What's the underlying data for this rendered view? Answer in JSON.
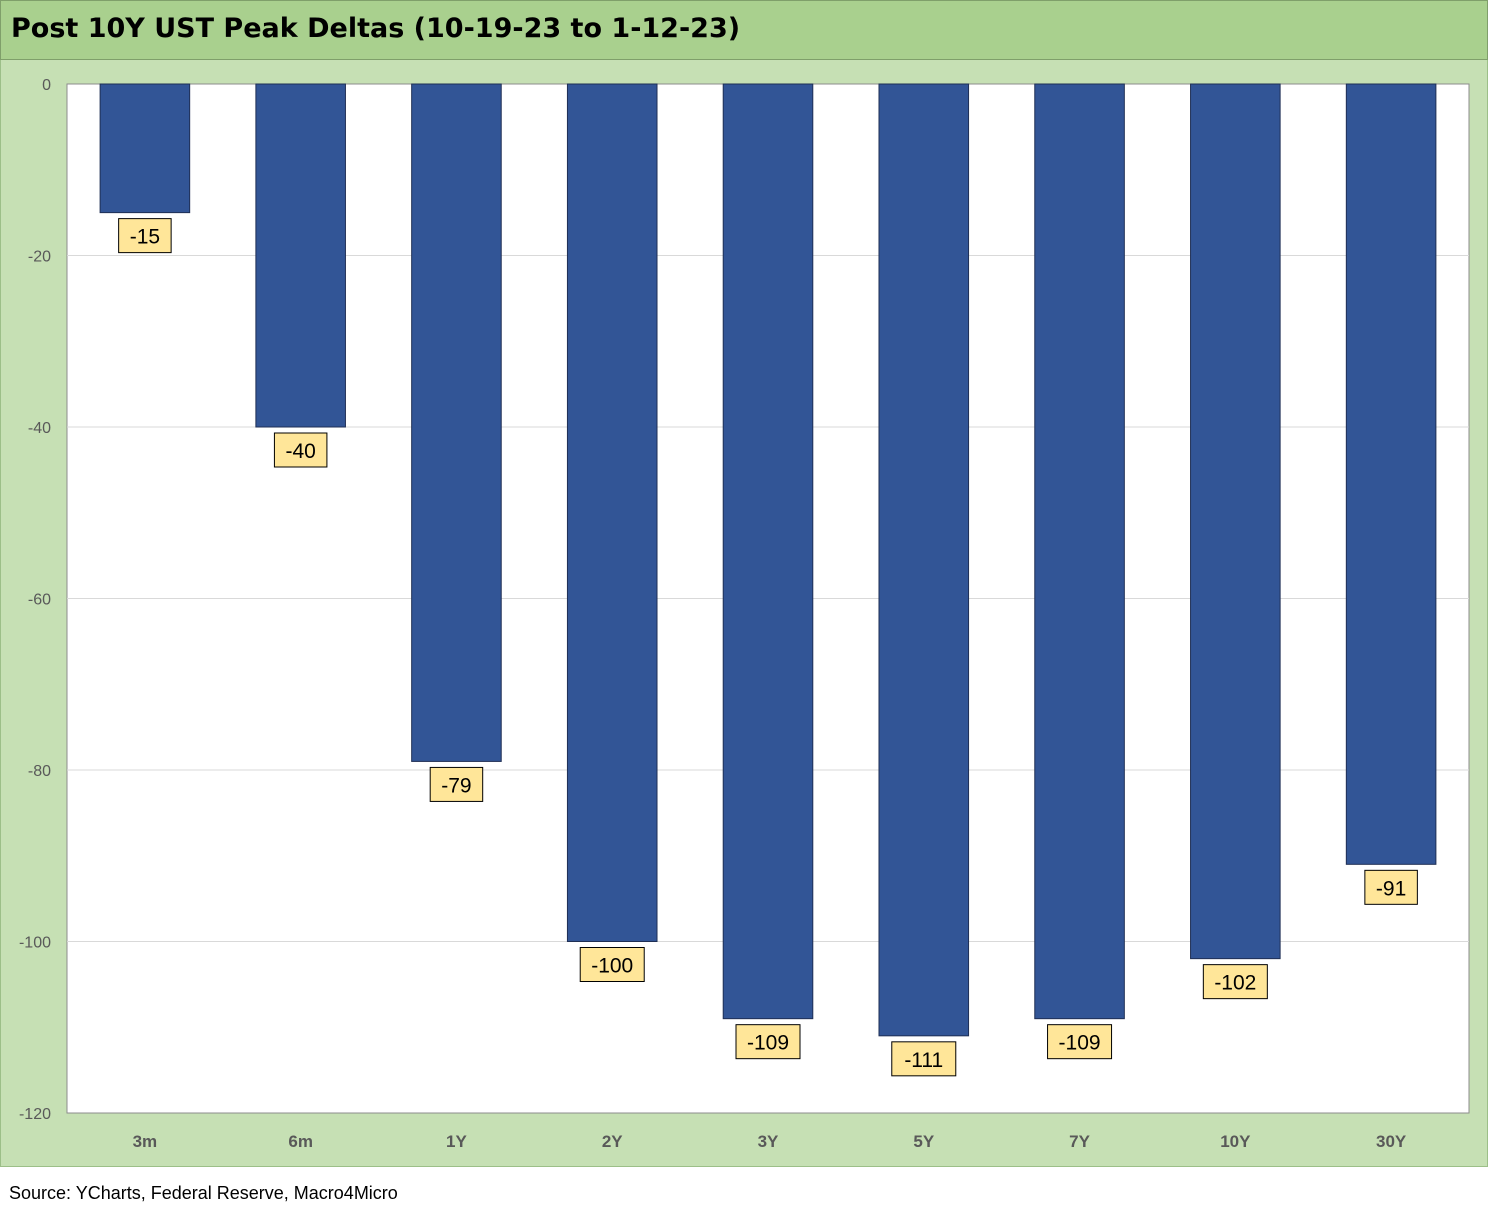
{
  "title": "Post 10Y UST Peak Deltas (10-19-23 to 1-12-23)",
  "source": "Source: YCharts, Federal Reserve, Macro4Micro",
  "colors": {
    "title_bg": "#a9d08e",
    "panel_bg": "#c6e0b4",
    "plot_bg": "#ffffff",
    "bar": "#325596",
    "label_bg": "#ffe699"
  },
  "chart_data": {
    "type": "bar",
    "title": "Post 10Y UST Peak Deltas (10-19-23 to 1-12-23)",
    "xlabel": "",
    "ylabel": "",
    "categories": [
      "3m",
      "6m",
      "1Y",
      "2Y",
      "3Y",
      "5Y",
      "7Y",
      "10Y",
      "30Y"
    ],
    "values": [
      -15,
      -40,
      -79,
      -100,
      -109,
      -111,
      -109,
      -102,
      -91
    ],
    "ylim": [
      -120,
      0
    ],
    "yticks": [
      0,
      -20,
      -40,
      -60,
      -80,
      -100,
      -120
    ],
    "grid": true,
    "legend": "none",
    "data_labels": true
  }
}
